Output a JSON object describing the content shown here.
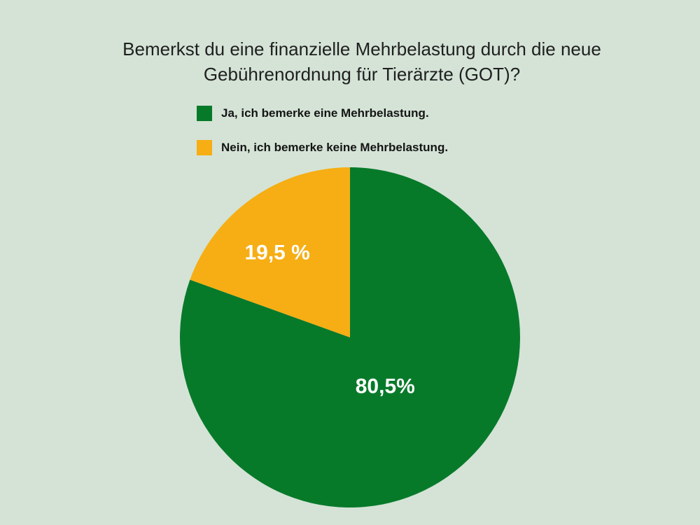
{
  "chart_data": {
    "type": "pie",
    "title": "Bemerkst du eine finanzielle Mehrbelastung durch die neue Gebührenordnung für Tierärzte (GOT)?",
    "slices": [
      {
        "name": "Ja, ich bemerke eine Mehrbelastung.",
        "value": 80.5,
        "label": "80,5%",
        "color": "#077a2a"
      },
      {
        "name": "Nein, ich bemerke keine Mehrbelastung.",
        "value": 19.5,
        "label": "19,5 %",
        "color": "#f6ae14"
      }
    ],
    "start_angle_deg": 0,
    "direction": "clockwise",
    "legend_position": "top"
  }
}
